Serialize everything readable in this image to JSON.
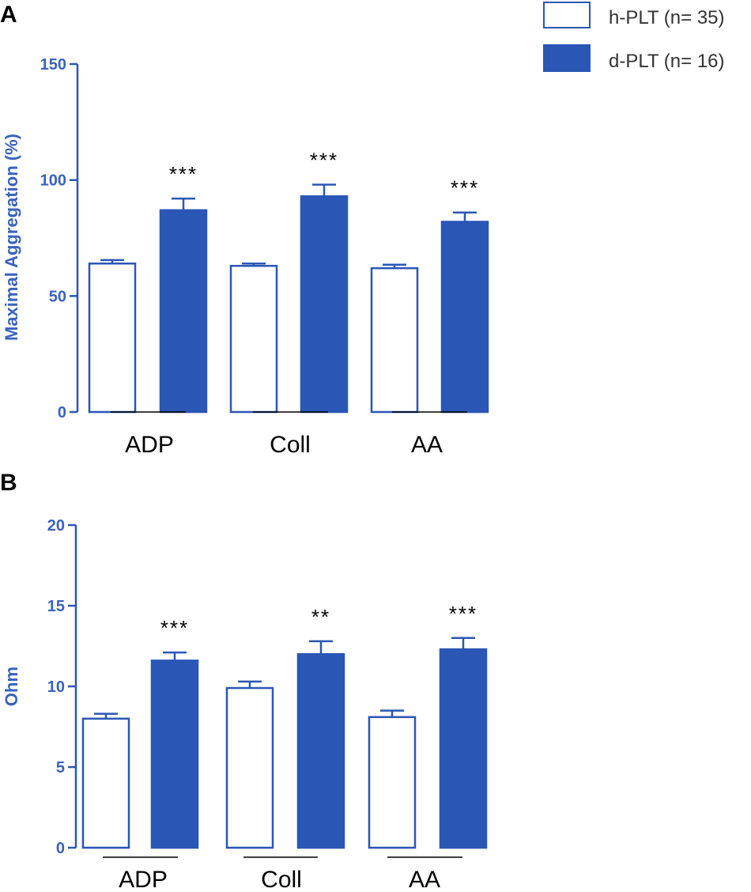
{
  "colors": {
    "axis": "#2a56b5",
    "axis_text": "#3a62bd",
    "bar_fill": "#2a56b5",
    "bar_outline": "#2a56b5",
    "open_fill": "#ffffff",
    "text": "#000000"
  },
  "legend": {
    "items": [
      {
        "label": "h-PLT (n= 35)",
        "style": "open"
      },
      {
        "label": "d-PLT (n= 16)",
        "style": "filled"
      }
    ]
  },
  "chart_data": [
    {
      "panel": "A",
      "type": "bar",
      "ylabel": "Maximal Aggregation  (%)",
      "ylim": [
        0,
        150
      ],
      "yticks": [
        0,
        50,
        100,
        150
      ],
      "categories": [
        "ADP",
        "Coll",
        "AA"
      ],
      "series": [
        {
          "name": "h-PLT (n= 35)",
          "values": [
            64,
            63,
            62
          ],
          "errors": [
            1.5,
            1.0,
            1.5
          ]
        },
        {
          "name": "d-PLT (n= 16)",
          "values": [
            87,
            93,
            82
          ],
          "errors": [
            5,
            5,
            4
          ]
        }
      ],
      "significance": [
        "***",
        "***",
        "***"
      ]
    },
    {
      "panel": "B",
      "type": "bar",
      "ylabel": "Ohm",
      "ylim": [
        0,
        20
      ],
      "yticks": [
        0,
        5,
        10,
        15,
        20
      ],
      "categories": [
        "ADP",
        "Coll",
        "AA"
      ],
      "series": [
        {
          "name": "h-PLT (n= 35)",
          "values": [
            8.0,
            9.9,
            8.1
          ],
          "errors": [
            0.3,
            0.4,
            0.4
          ]
        },
        {
          "name": "d-PLT (n= 16)",
          "values": [
            11.6,
            12.0,
            12.3
          ],
          "errors": [
            0.5,
            0.8,
            0.7
          ]
        }
      ],
      "significance": [
        "***",
        "**",
        "***"
      ]
    }
  ]
}
